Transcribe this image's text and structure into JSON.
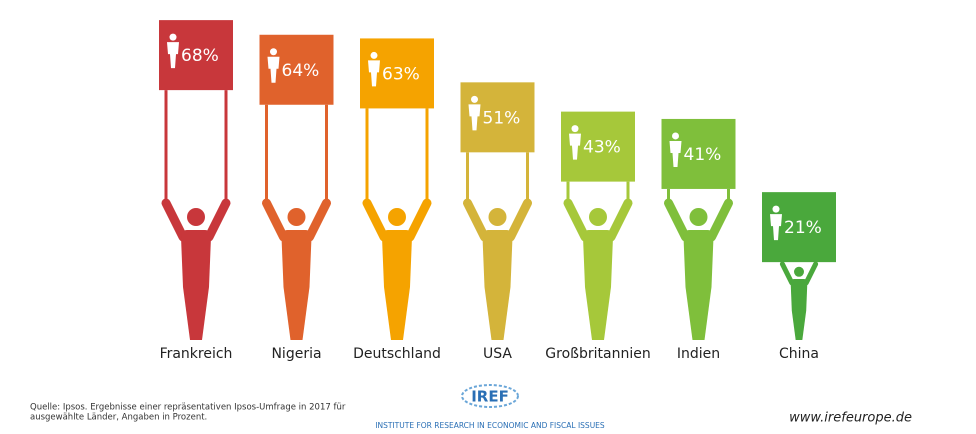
{
  "chart_data": {
    "type": "pictogram",
    "categories": [
      "Frankreich",
      "Nigeria",
      "Deutschland",
      "USA",
      "Großbritannien",
      "Indien",
      "China"
    ],
    "values": [
      68,
      64,
      63,
      51,
      43,
      41,
      21
    ],
    "value_labels": [
      "68%",
      "64%",
      "63%",
      "51%",
      "43%",
      "41%",
      "21%"
    ],
    "colors": [
      "#c8373b",
      "#e0622c",
      "#f5a300",
      "#d4b43a",
      "#a6c83a",
      "#7fbf3b",
      "#4aa83c"
    ]
  },
  "footer": {
    "source": [
      "Quelle: Ipsos. Ergebnisse einer repräsentativen Ipsos-Umfrage in 2017 für",
      "ausgewählte Länder, Angaben in Prozent."
    ],
    "logo": "IREF",
    "institute": "Institute for Research in Economic and Fiscal issues",
    "website": "www.irefeurope.de"
  }
}
